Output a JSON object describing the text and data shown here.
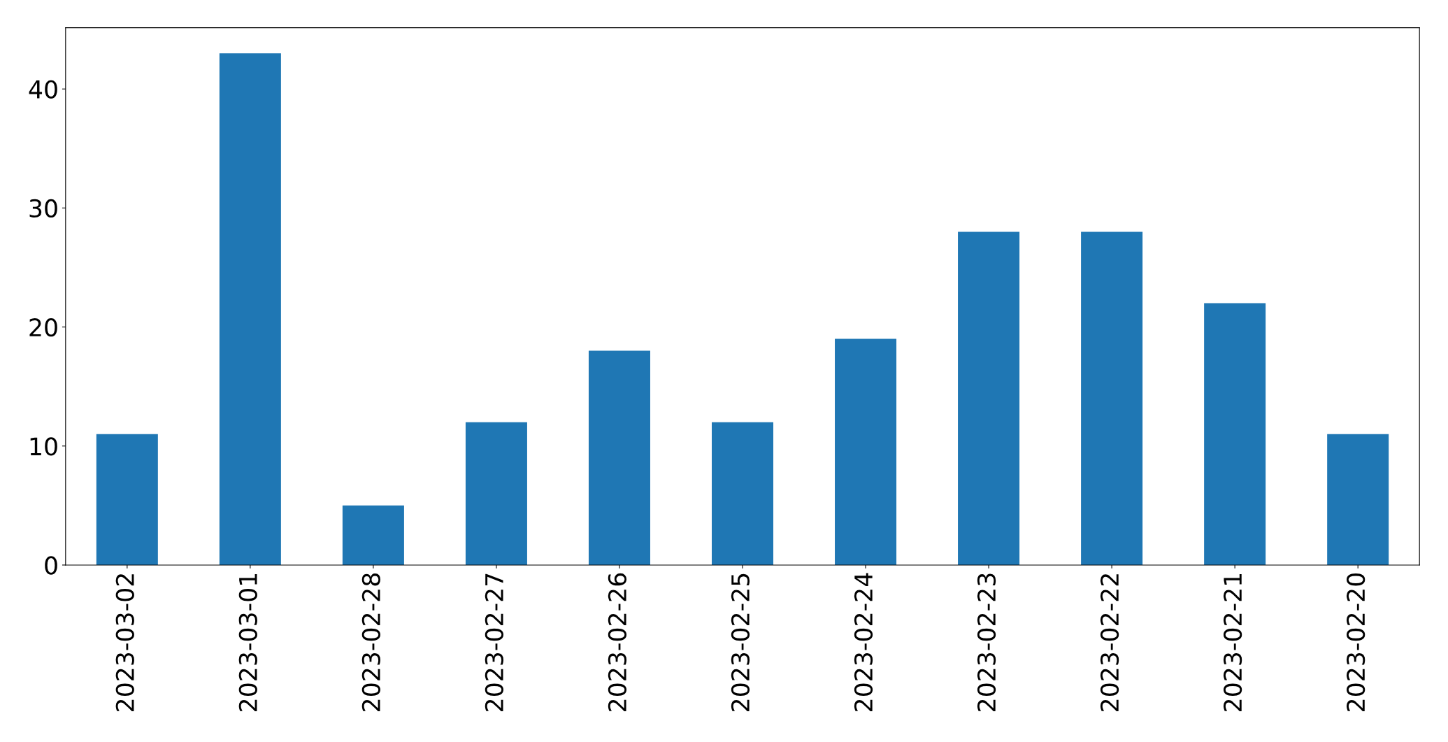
{
  "chart_data": {
    "type": "bar",
    "categories": [
      "2023-03-02",
      "2023-03-01",
      "2023-02-28",
      "2023-02-27",
      "2023-02-26",
      "2023-02-25",
      "2023-02-24",
      "2023-02-23",
      "2023-02-22",
      "2023-02-21",
      "2023-02-20"
    ],
    "values": [
      11,
      43,
      5,
      12,
      18,
      12,
      19,
      28,
      28,
      22,
      11
    ],
    "color": "#1f77b4",
    "ylim": [
      0,
      45.15
    ],
    "yticks": [
      0,
      10,
      20,
      30,
      40
    ],
    "grid": false,
    "legend": false
  }
}
